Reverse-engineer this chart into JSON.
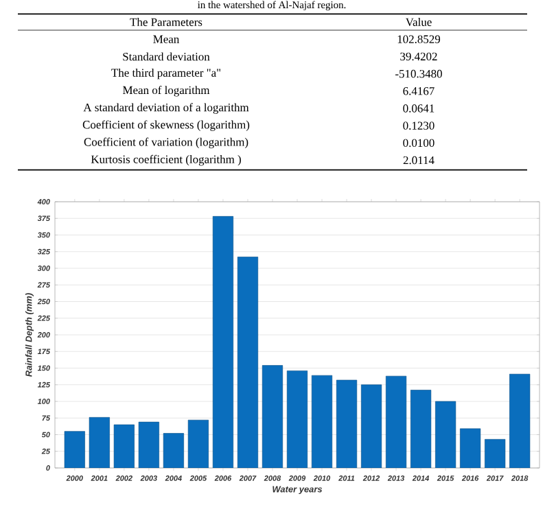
{
  "chart_data": [
    {
      "type": "other",
      "title": "in the watershed of Al-Najaf region.",
      "annotations": [
        "The Parameters",
        "Value",
        "Mean",
        "102.8529",
        "Standard deviation",
        "39.4202",
        "The third parameter \"a\"",
        "-510.3480",
        "Mean of logarithm",
        "6.4167",
        "A standard deviation of a logarithm",
        "0.0641",
        "Coefficient of skewness (logarithm)",
        "0.1230",
        "Coefficient of variation (logarithm)",
        "0.0100",
        "Kurtosis coefficient (logarithm )",
        "2.0114"
      ]
    },
    {
      "type": "bar",
      "xlabel": "Water years",
      "ylabel": "Rainfall Depth (mm)",
      "color": "#0a6ebd",
      "grid": "y",
      "ylim": [
        0,
        400
      ],
      "yticks": [
        0,
        25,
        50,
        75,
        100,
        125,
        150,
        175,
        200,
        225,
        250,
        275,
        300,
        325,
        350,
        375,
        400
      ],
      "categories": [
        "2000",
        "2001",
        "2002",
        "2003",
        "2004",
        "2005",
        "2006",
        "2007",
        "2008",
        "2009",
        "2010",
        "2011",
        "2012",
        "2013",
        "2014",
        "2015",
        "2016",
        "2017",
        "2018"
      ],
      "values": [
        55,
        76,
        65,
        69,
        52,
        72,
        378,
        317,
        154,
        146,
        139,
        132,
        125,
        138,
        117,
        100,
        59,
        43,
        141
      ]
    }
  ]
}
